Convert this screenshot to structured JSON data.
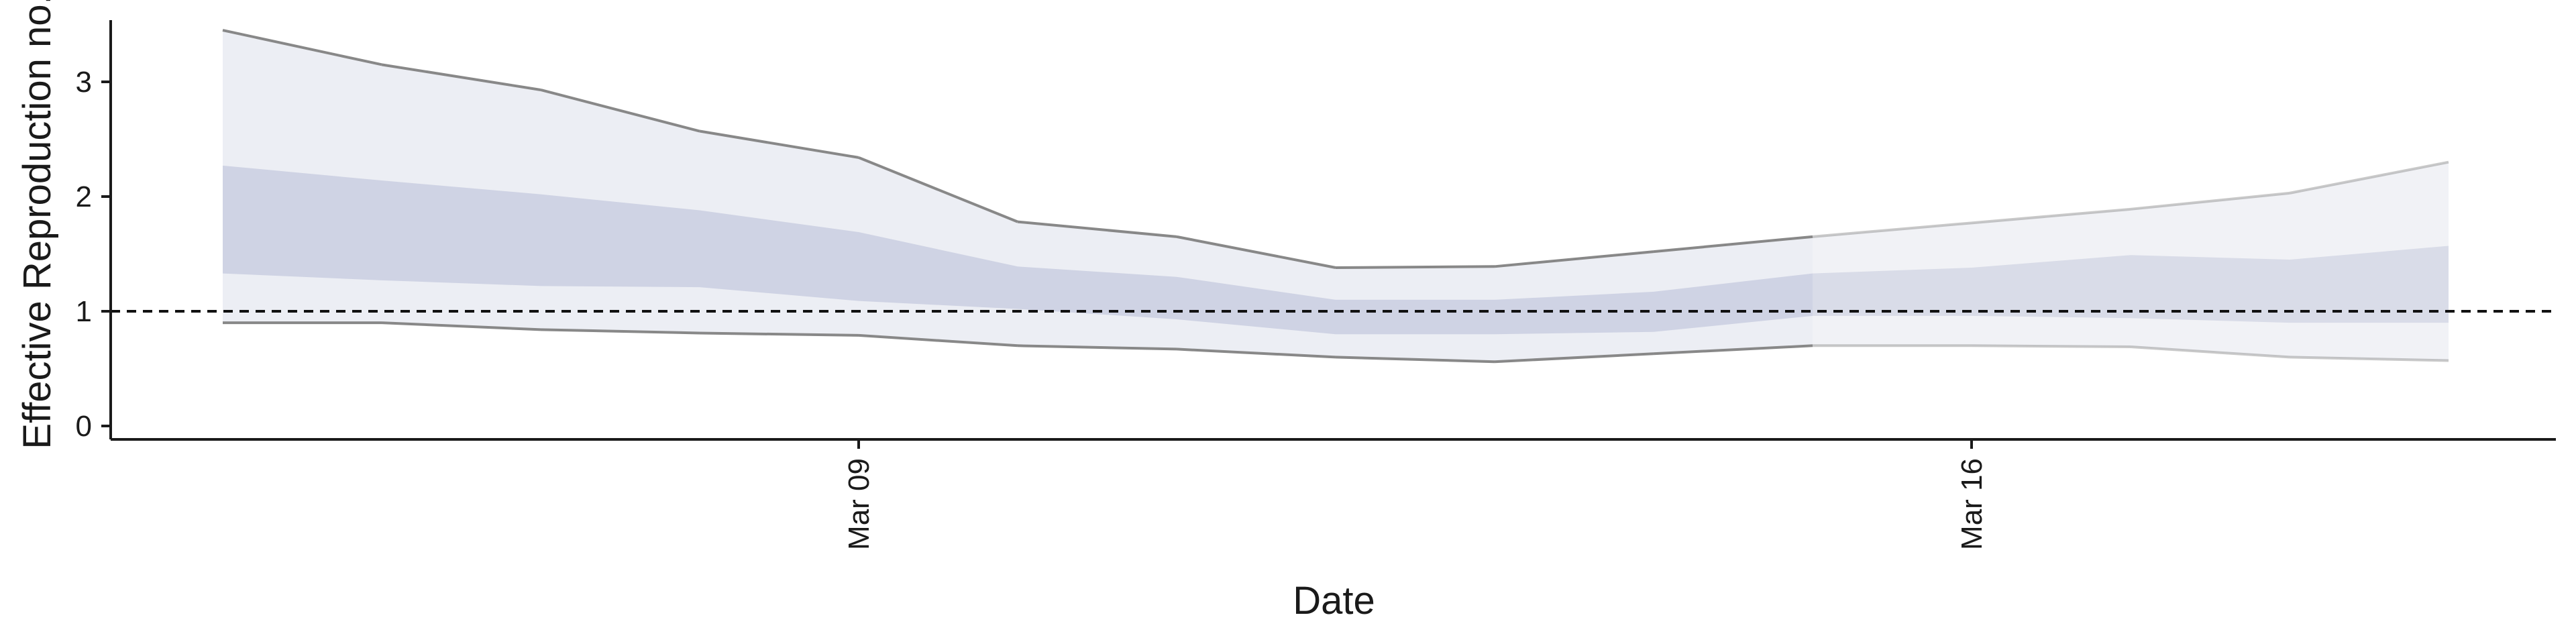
{
  "chart_data": {
    "type": "area",
    "title": "",
    "xlabel": "Date",
    "ylabel": "Effective Reproduction no.",
    "ylim": [
      -0.15,
      3.65
    ],
    "yticks": [
      0,
      1,
      2,
      3
    ],
    "xticks": [
      {
        "date": "2020-03-09",
        "label": "Mar 09"
      },
      {
        "date": "2020-03-16",
        "label": "Mar 16"
      }
    ],
    "reference_line": {
      "y": 1,
      "style": "dashed"
    },
    "grid": false,
    "legend": "none",
    "x": [
      "2020-03-05",
      "2020-03-06",
      "2020-03-07",
      "2020-03-08",
      "2020-03-09",
      "2020-03-10",
      "2020-03-11",
      "2020-03-12",
      "2020-03-13",
      "2020-03-14",
      "2020-03-15",
      "2020-03-16",
      "2020-03-17",
      "2020-03-18",
      "2020-03-19"
    ],
    "estimate_type": [
      "estimate",
      "estimate",
      "estimate",
      "estimate",
      "estimate",
      "estimate",
      "estimate",
      "estimate",
      "estimate",
      "estimate",
      "estimate",
      "forecast",
      "forecast",
      "forecast",
      "forecast"
    ],
    "series": [
      {
        "band": "outer",
        "lower": [
          0.9,
          0.9,
          0.84,
          0.81,
          0.79,
          0.7,
          0.67,
          0.6,
          0.56,
          0.63,
          0.7,
          0.7,
          0.69,
          0.6,
          0.57
        ],
        "upper": [
          3.45,
          3.15,
          2.93,
          2.57,
          2.34,
          1.78,
          1.65,
          1.38,
          1.39,
          1.52,
          1.65,
          1.77,
          1.89,
          2.03,
          2.3
        ]
      },
      {
        "band": "inner",
        "lower": [
          1.33,
          1.27,
          1.22,
          1.21,
          1.09,
          1.02,
          0.93,
          0.8,
          0.8,
          0.82,
          0.96,
          0.96,
          0.94,
          0.9,
          0.9
        ],
        "upper": [
          2.27,
          2.14,
          2.02,
          1.88,
          1.69,
          1.39,
          1.3,
          1.1,
          1.1,
          1.17,
          1.33,
          1.38,
          1.49,
          1.45,
          1.57
        ]
      }
    ],
    "colors": {
      "outer_band": "#dfe2ec",
      "inner_band": "#bcc1d8",
      "bound_line": "#888888",
      "axis": "#1a1a1a",
      "reference": "#111111"
    }
  }
}
